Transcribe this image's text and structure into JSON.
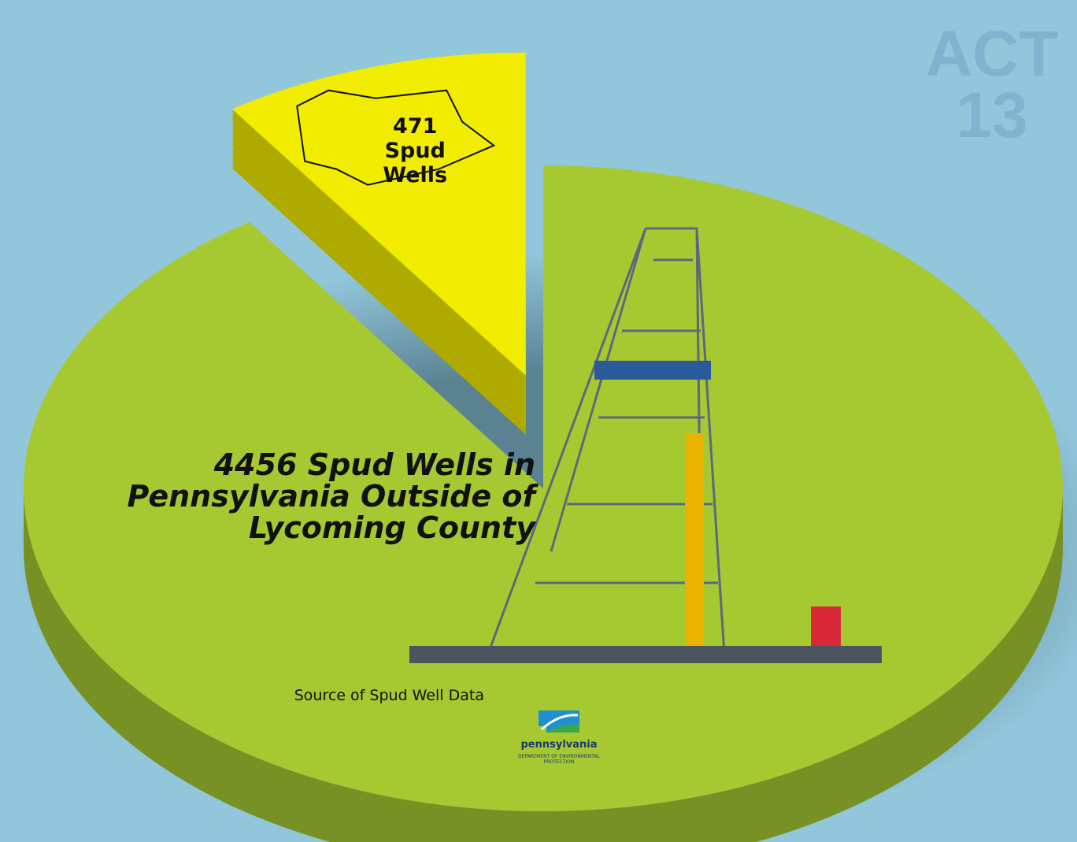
{
  "chart_data": {
    "type": "pie",
    "categories": [
      "Lycoming County",
      "Pennsylvania Outside of Lycoming County"
    ],
    "values": [
      471,
      4456
    ],
    "value_labels": [
      "471 Spud Wells",
      "4456 Spud Wells in Pennsylvania Outside of Lycoming County"
    ],
    "colors": [
      "#f2ec00",
      "#a6c932"
    ],
    "badge": "ACT 13",
    "source_label": "Source of Spud Well Data",
    "source_logo": {
      "name": "pennsylvania",
      "department": "DEPARTMENT OF ENVIRONMENTAL PROTECTION"
    }
  }
}
